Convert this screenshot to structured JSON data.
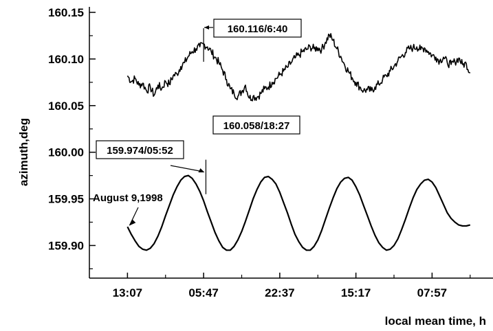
{
  "chart_data": {
    "type": "line",
    "title": "",
    "xlabel": "local mean time, h",
    "ylabel": "azimuth,deg",
    "ylim": [
      159.865,
      160.15
    ],
    "y_ticks": [
      "160.15",
      "160.10",
      "160.05",
      "160.00",
      "159.95",
      "159.90"
    ],
    "y_tick_values": [
      160.15,
      160.1,
      160.05,
      160.0,
      159.95,
      159.9
    ],
    "x_ticks": [
      "13:07",
      "05:47",
      "22:37",
      "15:17",
      "07:57"
    ],
    "x_tick_values": [
      0,
      1,
      2,
      3,
      4
    ],
    "xlim": [
      -0.5,
      4.8
    ],
    "grid": false,
    "series": [
      {
        "values_x": [
          0,
          0.05,
          0.1,
          0.15,
          0.2,
          0.25,
          0.3,
          0.35,
          0.4,
          0.45,
          0.5,
          0.55,
          0.6,
          0.65,
          0.7,
          0.75,
          0.8,
          0.85,
          0.9,
          0.95,
          1.0,
          1.05,
          1.1,
          1.15,
          1.2,
          1.25,
          1.3,
          1.35,
          1.4,
          1.45,
          1.5,
          1.55,
          1.6,
          1.65,
          1.7,
          1.75,
          1.8,
          1.85,
          1.9,
          1.95,
          2.0,
          2.05,
          2.1,
          2.15,
          2.2,
          2.25,
          2.3,
          2.35,
          2.4,
          2.45,
          2.5,
          2.55,
          2.6,
          2.65,
          2.7,
          2.75,
          2.8,
          2.85,
          2.9,
          2.95,
          3.0,
          3.05,
          3.1,
          3.15,
          3.2,
          3.25,
          3.3,
          3.35,
          3.4,
          3.45,
          3.5,
          3.55,
          3.6,
          3.65,
          3.7,
          3.75,
          3.8,
          3.85,
          3.9,
          3.95,
          4.0,
          4.05,
          4.1,
          4.15,
          4.2,
          4.25,
          4.3,
          4.35,
          4.4,
          4.45,
          4.5
        ],
        "values": [
          160.082,
          160.076,
          160.079,
          160.072,
          160.074,
          160.066,
          160.07,
          160.061,
          160.072,
          160.068,
          160.076,
          160.073,
          160.082,
          160.084,
          160.092,
          160.096,
          160.103,
          160.108,
          160.111,
          160.113,
          160.116,
          160.113,
          160.108,
          160.102,
          160.096,
          160.088,
          160.078,
          160.068,
          160.063,
          160.06,
          160.065,
          160.072,
          160.058,
          160.06,
          160.059,
          160.063,
          160.068,
          160.07,
          160.075,
          160.079,
          160.083,
          160.087,
          160.091,
          160.096,
          160.101,
          160.104,
          160.108,
          160.11,
          160.113,
          160.111,
          160.112,
          160.11,
          160.118,
          160.126,
          160.12,
          160.111,
          160.103,
          160.094,
          160.087,
          160.08,
          160.075,
          160.07,
          160.066,
          160.067,
          160.066,
          160.07,
          160.073,
          160.078,
          160.082,
          160.087,
          160.092,
          160.098,
          160.103,
          160.107,
          160.111,
          160.112,
          160.113,
          160.11,
          160.112,
          160.108,
          160.104,
          160.102,
          160.098,
          160.102,
          160.096,
          160.094,
          160.097,
          160.101,
          160.094,
          160.095,
          160.085
        ],
        "color": "#000000",
        "noisy": true
      },
      {
        "values_x": [
          0,
          0.05,
          0.1,
          0.15,
          0.2,
          0.25,
          0.3,
          0.35,
          0.4,
          0.45,
          0.5,
          0.55,
          0.6,
          0.65,
          0.7,
          0.75,
          0.8,
          0.85,
          0.9,
          0.95,
          1.0,
          1.05,
          1.1,
          1.15,
          1.2,
          1.25,
          1.3,
          1.35,
          1.4,
          1.45,
          1.5,
          1.55,
          1.6,
          1.65,
          1.7,
          1.75,
          1.8,
          1.85,
          1.9,
          1.95,
          2.0,
          2.05,
          2.1,
          2.15,
          2.2,
          2.25,
          2.3,
          2.35,
          2.4,
          2.45,
          2.5,
          2.55,
          2.6,
          2.65,
          2.7,
          2.75,
          2.8,
          2.85,
          2.9,
          2.95,
          3.0,
          3.05,
          3.1,
          3.15,
          3.2,
          3.25,
          3.3,
          3.35,
          3.4,
          3.45,
          3.5,
          3.55,
          3.6,
          3.65,
          3.7,
          3.75,
          3.8,
          3.85,
          3.9,
          3.95,
          4.0,
          4.05,
          4.1,
          4.15,
          4.2,
          4.25,
          4.3,
          4.35,
          4.4,
          4.45,
          4.5
        ],
        "values": [
          159.92,
          159.912,
          159.905,
          159.899,
          159.896,
          159.895,
          159.897,
          159.902,
          159.91,
          159.92,
          159.932,
          159.943,
          159.954,
          159.963,
          159.97,
          159.974,
          159.975,
          159.972,
          159.966,
          159.958,
          159.948,
          159.936,
          159.925,
          159.914,
          159.905,
          159.898,
          159.895,
          159.895,
          159.899,
          159.906,
          159.915,
          159.926,
          159.938,
          159.95,
          159.96,
          159.968,
          159.973,
          159.974,
          159.971,
          159.966,
          159.957,
          159.946,
          159.935,
          159.923,
          159.912,
          159.904,
          159.898,
          159.895,
          159.895,
          159.899,
          159.906,
          159.916,
          159.928,
          159.94,
          159.951,
          159.961,
          159.968,
          159.972,
          159.973,
          159.97,
          159.963,
          159.954,
          159.943,
          159.932,
          159.921,
          159.911,
          159.903,
          159.898,
          159.895,
          159.896,
          159.9,
          159.907,
          159.917,
          159.928,
          159.94,
          159.951,
          159.96,
          159.966,
          159.97,
          159.971,
          159.968,
          159.962,
          159.953,
          159.944,
          159.935,
          159.929,
          159.925,
          159.922,
          159.921,
          159.921,
          159.922
        ],
        "color": "#000000",
        "noisy": false
      }
    ],
    "annotations": [
      {
        "text": "160.116/6:40",
        "boxed": true
      },
      {
        "text": "160.058/18:27",
        "boxed": true
      },
      {
        "text": "159.974/05:52",
        "boxed": true
      },
      {
        "text": "August 9,1998",
        "boxed": false
      }
    ]
  }
}
